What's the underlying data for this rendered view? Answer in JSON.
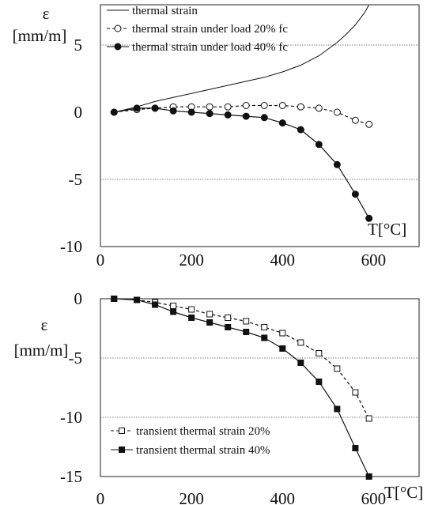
{
  "charts": [
    {
      "type": "line",
      "ylabel_symbol": "ε",
      "ylabel_unit": "[mm/m]",
      "xlabel": "T[°C]",
      "xlim": [
        0,
        700
      ],
      "ylim": [
        -10,
        8
      ],
      "x_ticks": [
        "0",
        "200",
        "400",
        "600"
      ],
      "x_tick_values": [
        0,
        200,
        400,
        600
      ],
      "y_ticks": [
        "5",
        "0",
        "-5",
        "-10"
      ],
      "y_tick_values": [
        5,
        0,
        -5,
        -10
      ],
      "ref_lines": [
        5,
        -5
      ],
      "legend_position": "top-left",
      "series": [
        {
          "name": "thermal strain",
          "style": "solid-line",
          "x": [
            30,
            80,
            120,
            160,
            200,
            240,
            280,
            320,
            360,
            400,
            440,
            480,
            500,
            520,
            540,
            560,
            580,
            590
          ],
          "y": [
            0.0,
            0.4,
            0.8,
            1.1,
            1.4,
            1.7,
            2.0,
            2.3,
            2.6,
            3.0,
            3.5,
            4.2,
            4.7,
            5.2,
            5.8,
            6.5,
            7.4,
            8.0
          ]
        },
        {
          "name": "thermal strain under load 20% fc",
          "style": "dashed-open-circle",
          "x": [
            30,
            80,
            120,
            160,
            200,
            240,
            280,
            320,
            360,
            400,
            440,
            480,
            520,
            560,
            590
          ],
          "y": [
            0.0,
            0.2,
            0.3,
            0.4,
            0.4,
            0.4,
            0.4,
            0.5,
            0.5,
            0.5,
            0.4,
            0.3,
            0.0,
            -0.6,
            -0.9
          ]
        },
        {
          "name": "thermal strain under load 40% fc",
          "style": "solid-filled-circle",
          "x": [
            30,
            80,
            120,
            160,
            200,
            240,
            280,
            320,
            360,
            400,
            440,
            480,
            520,
            560,
            590
          ],
          "y": [
            0.0,
            0.3,
            0.3,
            0.1,
            0.0,
            -0.1,
            -0.2,
            -0.3,
            -0.4,
            -0.8,
            -1.3,
            -2.4,
            -3.9,
            -6.1,
            -7.9
          ]
        }
      ]
    },
    {
      "type": "line",
      "ylabel_symbol": "ε",
      "ylabel_unit": "[mm/m]",
      "xlabel": "T[°C]",
      "xlim": [
        0,
        700
      ],
      "ylim": [
        -15,
        0
      ],
      "x_ticks": [
        "0",
        "200",
        "400",
        "600"
      ],
      "x_tick_values": [
        0,
        200,
        400,
        600
      ],
      "y_ticks": [
        "0",
        "-5",
        "-10",
        "-15"
      ],
      "y_tick_values": [
        0,
        -5,
        -10,
        -15
      ],
      "ref_lines": [
        -5,
        -10
      ],
      "legend_position": "bottom-left",
      "series": [
        {
          "name": "transient thermal strain 20%",
          "style": "dashed-open-square",
          "x": [
            30,
            80,
            120,
            160,
            200,
            240,
            280,
            320,
            360,
            400,
            440,
            480,
            520,
            560,
            590
          ],
          "y": [
            0.0,
            -0.1,
            -0.3,
            -0.6,
            -0.9,
            -1.3,
            -1.6,
            -1.9,
            -2.4,
            -2.9,
            -3.7,
            -4.6,
            -5.9,
            -7.9,
            -10.1
          ]
        },
        {
          "name": "transient thermal strain 40%",
          "style": "solid-filled-square",
          "x": [
            30,
            80,
            120,
            160,
            200,
            240,
            280,
            320,
            360,
            400,
            440,
            480,
            520,
            560,
            590
          ],
          "y": [
            0.0,
            -0.1,
            -0.5,
            -1.1,
            -1.6,
            -2.0,
            -2.4,
            -2.8,
            -3.3,
            -4.2,
            -5.4,
            -7.0,
            -9.3,
            -12.6,
            -15.0
          ]
        }
      ]
    }
  ]
}
